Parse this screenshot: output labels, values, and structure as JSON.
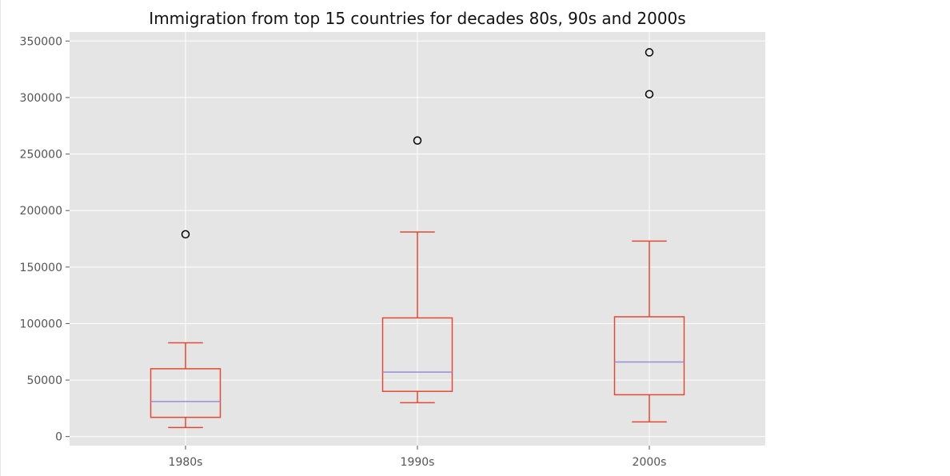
{
  "chart_data": {
    "type": "box",
    "title": "Immigration from top 15 countries for decades 80s, 90s and 2000s",
    "xlabel": "",
    "ylabel": "",
    "categories": [
      "1980s",
      "1990s",
      "2000s"
    ],
    "ylim": [
      -8000,
      358000
    ],
    "yticks": [
      0,
      50000,
      100000,
      150000,
      200000,
      250000,
      300000,
      350000
    ],
    "ytick_labels": [
      "0",
      "50000",
      "100000",
      "150000",
      "200000",
      "250000",
      "300000",
      "350000"
    ],
    "grid": true,
    "legend": "none",
    "boxes": [
      {
        "category": "1980s",
        "whisker_low": 8000,
        "q1": 17000,
        "median": 31000,
        "q3": 60000,
        "whisker_high": 83000,
        "outliers": [
          179000
        ]
      },
      {
        "category": "1990s",
        "whisker_low": 30000,
        "q1": 40000,
        "median": 57000,
        "q3": 105000,
        "whisker_high": 181000,
        "outliers": [
          262000
        ]
      },
      {
        "category": "2000s",
        "whisker_low": 13000,
        "q1": 37000,
        "median": 66000,
        "q3": 106000,
        "whisker_high": 173000,
        "outliers": [
          303000,
          340000
        ]
      }
    ],
    "colors": {
      "plot_background": "#e5e5e5",
      "grid": "#ffffff",
      "box": "#e24a33",
      "median": "#988ed5",
      "outlier_edge": "#000000"
    }
  }
}
